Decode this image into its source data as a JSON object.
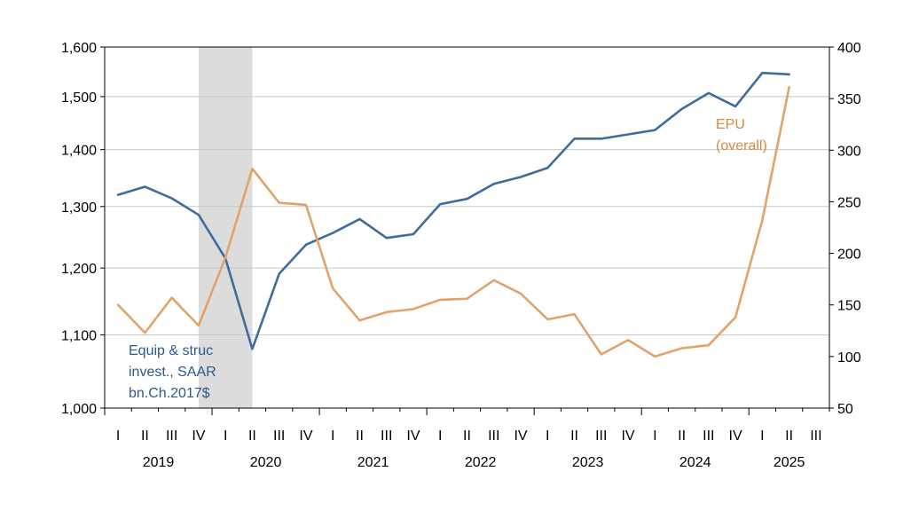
{
  "chart_data": {
    "type": "line",
    "x_quarters": [
      "2019Q1",
      "2019Q2",
      "2019Q3",
      "2019Q4",
      "2020Q1",
      "2020Q2",
      "2020Q3",
      "2020Q4",
      "2021Q1",
      "2021Q2",
      "2021Q3",
      "2021Q4",
      "2022Q1",
      "2022Q2",
      "2022Q3",
      "2022Q4",
      "2023Q1",
      "2023Q2",
      "2023Q3",
      "2023Q4",
      "2024Q1",
      "2024Q2",
      "2024Q3",
      "2024Q4",
      "2025Q1",
      "2025Q2"
    ],
    "quarter_ticks": [
      "I",
      "II",
      "III",
      "IV",
      "I",
      "II",
      "III",
      "IV",
      "I",
      "II",
      "III",
      "IV",
      "I",
      "II",
      "III",
      "IV",
      "I",
      "II",
      "III",
      "IV",
      "I",
      "II",
      "III",
      "IV",
      "I",
      "II",
      "III"
    ],
    "years": [
      {
        "label": "2019",
        "quarter_index": 1.5
      },
      {
        "label": "2020",
        "quarter_index": 5.5
      },
      {
        "label": "2021",
        "quarter_index": 9.5
      },
      {
        "label": "2022",
        "quarter_index": 13.5
      },
      {
        "label": "2023",
        "quarter_index": 17.5
      },
      {
        "label": "2024",
        "quarter_index": 21.5
      },
      {
        "label": "2025",
        "quarter_index": 25
      }
    ],
    "recession_shading": {
      "start_quarter_index": 3,
      "end_quarter_index": 5,
      "color": "#dcdcdc"
    },
    "left_axis": {
      "scale": "log",
      "range": [
        1000,
        1600
      ],
      "ticks": [
        1000,
        1100,
        1200,
        1300,
        1400,
        1500,
        1600
      ],
      "tick_labels": [
        "1,000",
        "1,100",
        "1,200",
        "1,300",
        "1,400",
        "1,500",
        "1,600"
      ]
    },
    "right_axis": {
      "scale": "linear",
      "range": [
        50,
        400
      ],
      "ticks": [
        50,
        100,
        150,
        200,
        250,
        300,
        350,
        400
      ],
      "tick_labels": [
        "50",
        "100",
        "150",
        "200",
        "250",
        "300",
        "350",
        "400"
      ]
    },
    "grid": true,
    "series": [
      {
        "name": "Equip & struc invest., SAAR bn.Ch.2017$",
        "label_lines": [
          "Equip & struc",
          "invest., SAAR",
          "bn.Ch.2017$"
        ],
        "axis": "left",
        "color": "#3f6c9c",
        "values": [
          1320,
          1334,
          1314,
          1286,
          1215,
          1080,
          1191,
          1237,
          1256,
          1279,
          1248,
          1254,
          1304,
          1313,
          1339,
          1351,
          1367,
          1420,
          1420,
          1428,
          1436,
          1476,
          1507,
          1481,
          1547,
          1544
        ]
      },
      {
        "name": "EPU (overall)",
        "label_lines": [
          "EPU",
          "(overall)"
        ],
        "axis": "right",
        "color": "#e0a46b",
        "values": [
          150,
          123,
          157,
          130,
          196,
          282,
          249,
          247,
          166,
          135,
          143,
          146,
          155,
          156,
          174,
          161,
          136,
          141,
          102,
          116,
          100,
          108,
          111,
          138,
          232,
          361
        ]
      }
    ]
  }
}
